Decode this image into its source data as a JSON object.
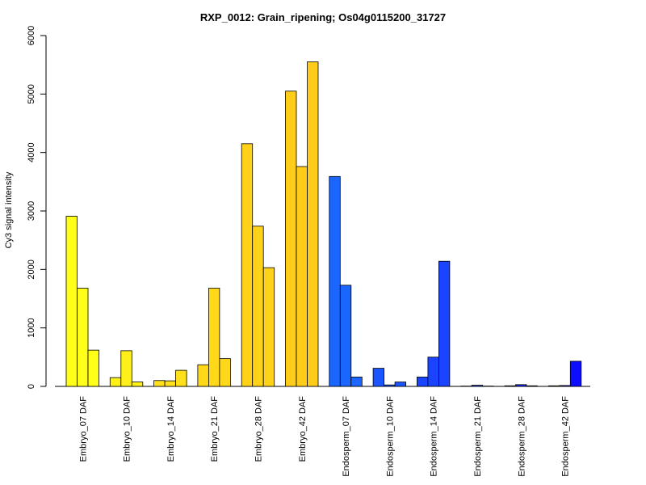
{
  "chart_data": {
    "type": "bar",
    "title": "RXP_0012: Grain_ripening; Os04g0115200_31727",
    "xlabel": "",
    "ylabel": "Cy3 signal intensity",
    "ylim": [
      0,
      6000
    ],
    "yticks": [
      0,
      1000,
      2000,
      3000,
      4000,
      5000,
      6000
    ],
    "grid": false,
    "legend": "none",
    "bars_per_group": 3,
    "categories": [
      "Embryo_07 DAF",
      "Embryo_10 DAF",
      "Embryo_14 DAF",
      "Embryo_21 DAF",
      "Embryo_28 DAF",
      "Embryo_42 DAF",
      "Endosperm_07 DAF",
      "Endosperm_10 DAF",
      "Endosperm_14 DAF",
      "Endosperm_21 DAF",
      "Endosperm_28 DAF",
      "Endosperm_42 DAF"
    ],
    "values": [
      [
        2910,
        1680,
        620
      ],
      [
        150,
        610,
        75
      ],
      [
        100,
        95,
        275
      ],
      [
        370,
        1680,
        475
      ],
      [
        4150,
        2740,
        2030
      ],
      [
        5050,
        3760,
        5550
      ],
      [
        3590,
        1730,
        160
      ],
      [
        310,
        25,
        75
      ],
      [
        160,
        500,
        2140
      ],
      [
        5,
        20,
        5
      ],
      [
        10,
        30,
        10
      ],
      [
        10,
        15,
        430
      ]
    ],
    "colors": [
      "#FFFF1A",
      "#FFF01A",
      "#FFE01A",
      "#FFD81A",
      "#FFD21A",
      "#FFCC1A",
      "#1A66FF",
      "#1A55FF",
      "#1A44FF",
      "#1A33FF",
      "#1A22FF",
      "#0D0DFF"
    ]
  }
}
